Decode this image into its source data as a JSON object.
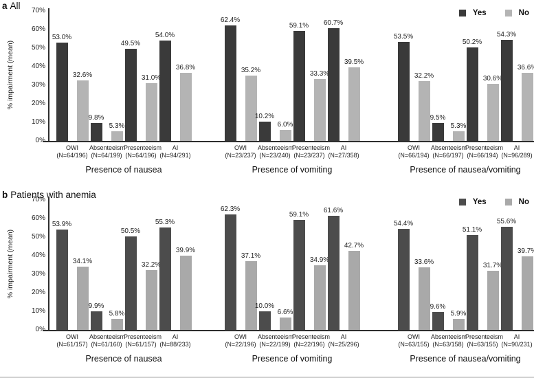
{
  "figure": {
    "background": "#ffffff",
    "bottom_rule_color": "#cfcfcf"
  },
  "legend": {
    "yes": "Yes",
    "no": "No"
  },
  "y_axis": {
    "label": "% impairment (mean)",
    "ticks": [
      70,
      60,
      50,
      40,
      30,
      20,
      10,
      0
    ],
    "suffix": "%",
    "max": 70
  },
  "chart_data": [
    {
      "type": "bar",
      "panel": "a",
      "title": "All",
      "ylabel": "% impairment (mean)",
      "ylim": [
        0,
        70
      ],
      "legend_position": "top-right",
      "grid": false,
      "colors": {
        "yes": "#3a3a3a",
        "no": "#b4b4b4"
      },
      "groups": [
        {
          "label": "Presence of nausea",
          "categories": [
            {
              "name": "OWI",
              "n": "(N=64/196)",
              "yes": 53.0,
              "no": 32.6
            },
            {
              "name": "Absenteeism",
              "n": "(N=64/199)",
              "yes": 9.8,
              "no": 5.3
            },
            {
              "name": "Presenteeism",
              "n": "(N=64/196)",
              "yes": 49.5,
              "no": 31.0
            },
            {
              "name": "AI",
              "n": "(N=94/291)",
              "yes": 54.0,
              "no": 36.8
            }
          ]
        },
        {
          "label": "Presence of vomiting",
          "categories": [
            {
              "name": "OWI",
              "n": "(N=23/237)",
              "yes": 62.4,
              "no": 35.2
            },
            {
              "name": "Absenteeism",
              "n": "(N=23/240)",
              "yes": 10.2,
              "no": 6.0
            },
            {
              "name": "Presenteeism",
              "n": "(N=23/237)",
              "yes": 59.1,
              "no": 33.3
            },
            {
              "name": "AI",
              "n": "(N=27/358)",
              "yes": 60.7,
              "no": 39.5
            }
          ]
        },
        {
          "label": "Presence of nausea/vomiting",
          "categories": [
            {
              "name": "OWI",
              "n": "(N=66/194)",
              "yes": 53.5,
              "no": 32.2
            },
            {
              "name": "Absenteeism",
              "n": "(N=66/197)",
              "yes": 9.5,
              "no": 5.3
            },
            {
              "name": "Presenteeism",
              "n": "(N=66/194)",
              "yes": 50.2,
              "no": 30.6
            },
            {
              "name": "AI",
              "n": "(N=96/289)",
              "yes": 54.3,
              "no": 36.6
            }
          ]
        }
      ]
    },
    {
      "type": "bar",
      "panel": "b",
      "title": "Patients with anemia",
      "ylabel": "% impairment (mean)",
      "ylim": [
        0,
        70
      ],
      "legend_position": "top-right",
      "grid": false,
      "colors": {
        "yes": "#4c4c4c",
        "no": "#a9a9a9"
      },
      "groups": [
        {
          "label": "Presence of nausea",
          "categories": [
            {
              "name": "OWI",
              "n": "(N=61/157)",
              "yes": 53.9,
              "no": 34.1
            },
            {
              "name": "Absenteeism",
              "n": "(N=61/160)",
              "yes": 9.9,
              "no": 5.8
            },
            {
              "name": "Presenteeism",
              "n": "(N=61/157)",
              "yes": 50.5,
              "no": 32.2
            },
            {
              "name": "AI",
              "n": "(N=88/233)",
              "yes": 55.3,
              "no": 39.9
            }
          ]
        },
        {
          "label": "Presence of vomiting",
          "categories": [
            {
              "name": "OWI",
              "n": "(N=22/196)",
              "yes": 62.3,
              "no": 37.1
            },
            {
              "name": "Absenteeism",
              "n": "(N=22/199)",
              "yes": 10.0,
              "no": 6.6
            },
            {
              "name": "Presenteeism",
              "n": "(N=22/196)",
              "yes": 59.1,
              "no": 34.9
            },
            {
              "name": "AI",
              "n": "(N=25/296)",
              "yes": 61.6,
              "no": 42.7
            }
          ]
        },
        {
          "label": "Presence of nausea/vomiting",
          "categories": [
            {
              "name": "OWI",
              "n": "(N=63/155)",
              "yes": 54.4,
              "no": 33.6
            },
            {
              "name": "Absenteeism",
              "n": "(N=63/158)",
              "yes": 9.6,
              "no": 5.9
            },
            {
              "name": "Presenteeism",
              "n": "(N=63/155)",
              "yes": 51.1,
              "no": 31.7
            },
            {
              "name": "AI",
              "n": "(N=90/231)",
              "yes": 55.6,
              "no": 39.7
            }
          ]
        }
      ]
    }
  ]
}
